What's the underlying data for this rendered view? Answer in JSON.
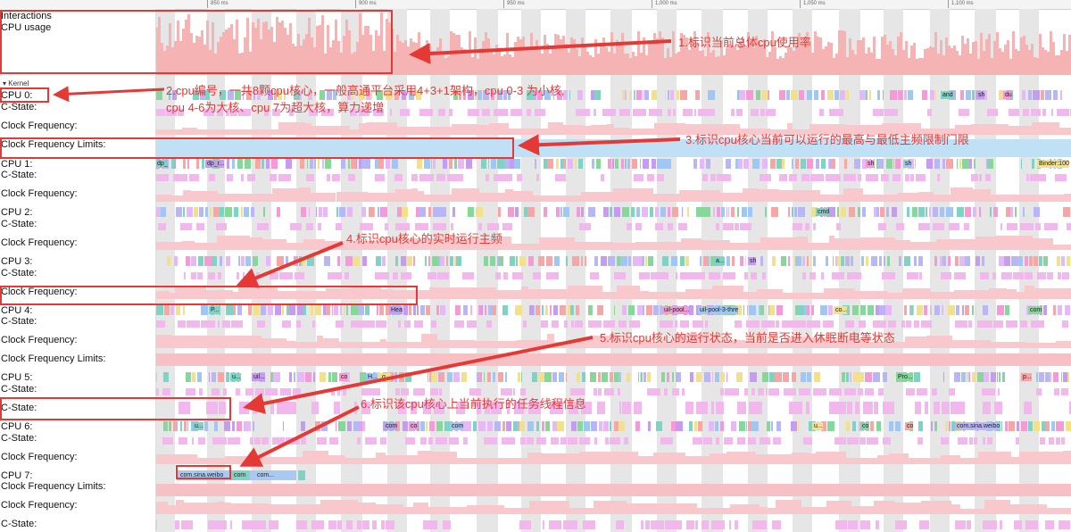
{
  "ruler": {
    "ticks": [
      "850 ms",
      "900 ms",
      "950 ms",
      "1,000 ms",
      "1,050 ms",
      "1,100 ms"
    ]
  },
  "tracks": {
    "interactions": "Interactions",
    "cpu_usage": "CPU usage",
    "kernel": "Kernel",
    "cpu0": "CPU 0:",
    "cpu0_cstate": "C-State:",
    "cpu0_freq": "Clock Frequency:",
    "cpu0_limits": "Clock Frequency Limits:",
    "cpu1": "CPU 1:",
    "cpu1_cstate": "C-State:",
    "cpu1_freq": "Clock Frequency:",
    "cpu2": "CPU 2:",
    "cpu2_cstate": "C-State:",
    "cpu2_freq": "Clock Frequency:",
    "cpu3": "CPU 3:",
    "cpu3_cstate": "C-State:",
    "cpu3_freq": "Clock Frequency:",
    "cpu4": "CPU 4:",
    "cpu4_cstate": "C-State:",
    "cpu4_freq": "Clock Frequency:",
    "cpu4_limits": "Clock Frequency Limits:",
    "cpu5": "CPU 5:",
    "cpu5_cstate": "C-State:",
    "cpu5_cstate2": "C-State:",
    "cpu6": "CPU 6:",
    "cpu6_cstate": "C-State:",
    "cpu6_freq": "Clock Frequency:",
    "cpu7": "CPU 7:",
    "cpu7_limits": "Clock Frequency Limits:",
    "cpu7_freq": "Clock Frequency:",
    "cpu7_cstate": "C-State:"
  },
  "slices": {
    "cpu0": [
      "and",
      "sh",
      "du"
    ],
    "cpu1": [
      "dp_",
      "dp_r...",
      "sh",
      "sh",
      "Binder:100"
    ],
    "cpu2": [
      "cmd"
    ],
    "cpu3": [
      "a...",
      "sh"
    ],
    "cpu4": [
      "P...",
      "Hea",
      "uil-pool...",
      "uil-pool-3-thre",
      "co...",
      "com"
    ],
    "cpu5": [
      "u...",
      "uil...",
      "co",
      "H...",
      "g...",
      "Pro...",
      "p..."
    ],
    "cpu6": [
      "u...",
      "com",
      "co",
      "com",
      "u...",
      "co",
      "co",
      "com.sina.weibo"
    ],
    "cpu7": [
      "com.sina.weibo",
      "com",
      "com..."
    ]
  },
  "annotations": {
    "a1": "1.标识当前总体cpu使用率",
    "a2_line1": "2.cpu编号，一共8颗cpu核心，一般高通平台采用4+3+1架构，cpu 0-3 为小核,",
    "a2_line2": "cpu 4-6为大核、cpu 7为超大核，算力递增",
    "a3": "3.标识cpu核心当前可以运行的最高与最低主频限制门限",
    "a4": "4.标识cpu核心的实时运行主频",
    "a5": "5.标识cpu核心的运行状态，当前是否进入休眠断电等状态",
    "a6": "6.标识该cpu核心上当前执行的任务线程信息"
  },
  "colors": {
    "annotation": "#e53935",
    "usage": "#f6b3b3",
    "freq": "#f8c8cc",
    "limits": "#bfe0f5",
    "cstate": "#f2b7ec",
    "band": "#e6e6e6"
  }
}
